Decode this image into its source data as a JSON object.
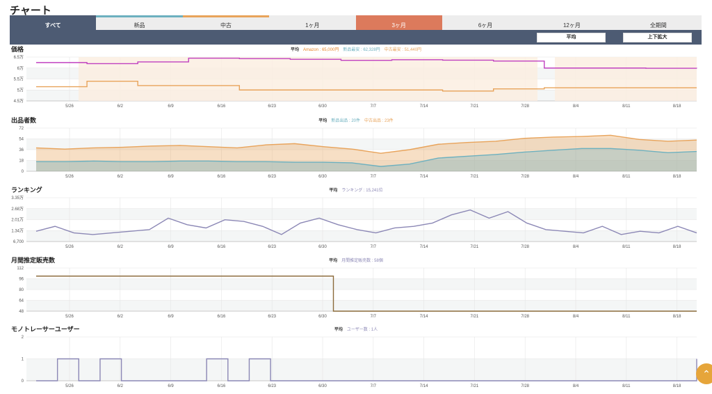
{
  "page": {
    "title": "チャート"
  },
  "tabs": [
    {
      "label": "すべて"
    },
    {
      "label": "新品"
    },
    {
      "label": "中古"
    },
    {
      "label": "1ヶ月"
    },
    {
      "label": "3ヶ月"
    },
    {
      "label": "6ヶ月"
    },
    {
      "label": "12ヶ月"
    },
    {
      "label": "全期間"
    }
  ],
  "buttons": {
    "average": "平均",
    "zoom": "上下拡大"
  },
  "x_ticks": [
    "5/26",
    "6/2",
    "6/9",
    "6/16",
    "6/23",
    "6/30",
    "7/7",
    "7/14",
    "7/21",
    "7/28",
    "8/4",
    "8/11",
    "8/18"
  ],
  "colors": {
    "amazon": "#e8862a",
    "new": "#6cb0bf",
    "used": "#e8a35a",
    "ranking": "#8b87b5",
    "sales": "#8b6a3a",
    "users": "#8b87b5",
    "price_line": "#c040c0"
  },
  "chart_data": [
    {
      "type": "line",
      "title": "価格",
      "legend": {
        "prefix": "平均",
        "items": [
          {
            "text": "Amazon : 65,000円",
            "color": "#e8862a"
          },
          {
            "text": "新品最安 : 62,328円",
            "color": "#6cb0bf"
          },
          {
            "text": "中古最安 : 51,440円",
            "color": "#e8a35a"
          }
        ]
      },
      "y_ticks": [
        "6.5万",
        "6万",
        "5.5万",
        "5万",
        "4.5万"
      ],
      "ylim": [
        45000,
        65000
      ],
      "series": [
        {
          "name": "新品最安",
          "color": "#c040c0",
          "values": [
            62500,
            62000,
            62800,
            64500,
            64300,
            64000,
            63500,
            63800,
            63600,
            63200,
            60000,
            60000,
            59900,
            59800
          ]
        },
        {
          "name": "中古最安",
          "color": "#e8a35a",
          "values": [
            51500,
            54000,
            52000,
            52000,
            50000,
            50000,
            50000,
            50000,
            49500,
            50500,
            51000,
            51000,
            51000,
            51000
          ]
        }
      ]
    },
    {
      "type": "area",
      "title": "出品者数",
      "legend": {
        "prefix": "平均",
        "items": [
          {
            "text": "新品出品 : 20件",
            "color": "#6cb0bf"
          },
          {
            "text": "中古出品 : 23件",
            "color": "#e8a35a"
          }
        ]
      },
      "y_ticks": [
        "72",
        "54",
        "36",
        "18",
        "0"
      ],
      "ylim": [
        0,
        72
      ],
      "series": [
        {
          "name": "中古出品",
          "color": "#e8a35a",
          "values": [
            39,
            37,
            39,
            40,
            42,
            43,
            41,
            39,
            44,
            46,
            41,
            37,
            30,
            36,
            45,
            48,
            50,
            55,
            57,
            58,
            60,
            53,
            50,
            52
          ]
        },
        {
          "name": "新品出品",
          "color": "#6cb0bf",
          "values": [
            16,
            16,
            17,
            16,
            16,
            17,
            17,
            16,
            16,
            15,
            15,
            14,
            8,
            12,
            22,
            25,
            28,
            32,
            35,
            38,
            38,
            35,
            31,
            33
          ]
        }
      ]
    },
    {
      "type": "line",
      "title": "ランキング",
      "legend": {
        "prefix": "平均",
        "items": [
          {
            "text": "ランキング : 15,241位",
            "color": "#8b87b5"
          }
        ]
      },
      "y_ticks": [
        "3.35万",
        "2.68万",
        "2.01万",
        "1.34万",
        "6,700"
      ],
      "ylim": [
        6700,
        33500
      ],
      "series": [
        {
          "name": "ランキング",
          "color": "#8b87b5",
          "values": [
            13000,
            16000,
            12000,
            11000,
            12000,
            13000,
            14000,
            21000,
            17000,
            15000,
            20000,
            19000,
            16000,
            11000,
            18000,
            21000,
            17000,
            14000,
            12000,
            15000,
            16000,
            18000,
            23000,
            26000,
            21000,
            25000,
            18000,
            14000,
            13000,
            12000,
            16000,
            11000,
            13000,
            12000,
            16000,
            12000
          ]
        }
      ]
    },
    {
      "type": "line",
      "title": "月間推定販売数",
      "legend": {
        "prefix": "平均",
        "items": [
          {
            "text": "月間推定販売数 : 58個",
            "color": "#8b87b5"
          }
        ]
      },
      "y_ticks": [
        "112",
        "96",
        "80",
        "64",
        "48"
      ],
      "ylim": [
        48,
        112
      ],
      "series": [
        {
          "name": "月間推定販売数",
          "color": "#8b6a3a",
          "values": [
            100,
            100,
            100,
            100,
            100,
            100,
            100,
            100,
            100,
            48,
            48,
            48,
            48,
            48,
            48,
            48,
            48,
            48,
            48,
            48,
            48
          ]
        }
      ]
    },
    {
      "type": "line",
      "title": "モノトレーサーユーザー",
      "legend": {
        "prefix": "平均",
        "items": [
          {
            "text": "ユーザー数 : 1人",
            "color": "#8b87b5"
          }
        ]
      },
      "y_ticks": [
        "2",
        "1",
        "0"
      ],
      "ylim": [
        0,
        2
      ],
      "series": [
        {
          "name": "ユーザー数",
          "color": "#8b87b5",
          "values": [
            0,
            1,
            0,
            1,
            0,
            0,
            0,
            0,
            1,
            0,
            1,
            0,
            0,
            0,
            0,
            0,
            0,
            0,
            0,
            0,
            0,
            0,
            0,
            0,
            0,
            0,
            0,
            0,
            0,
            0,
            0,
            1
          ]
        }
      ]
    }
  ]
}
